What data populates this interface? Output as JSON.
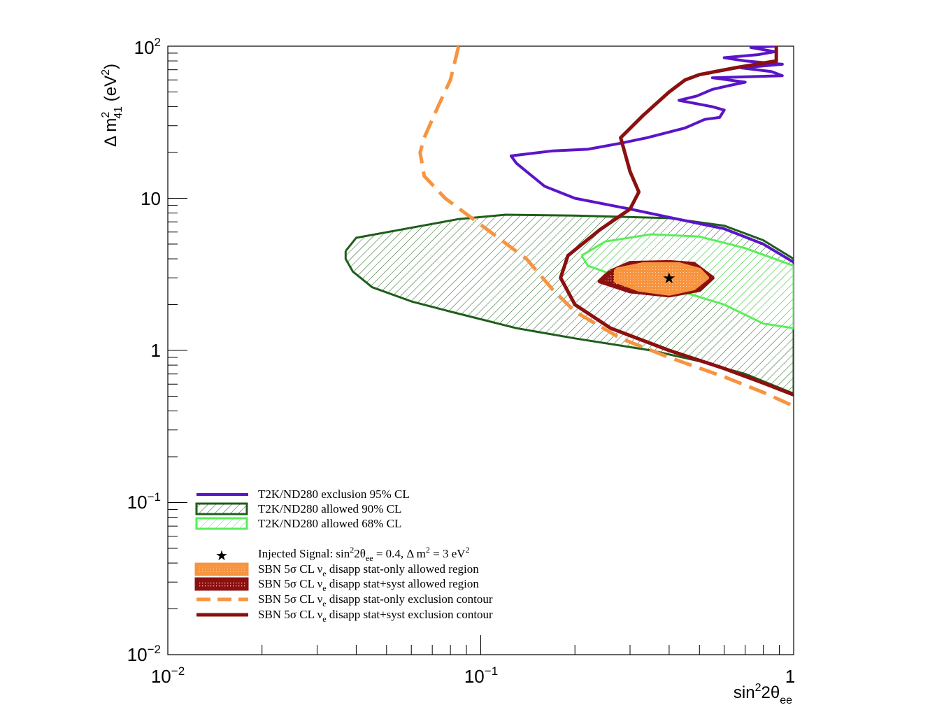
{
  "chart_data": {
    "type": "line",
    "xlabel": "sin²2θ_ee",
    "ylabel": "Δ m²41 (eV²)",
    "x_scale": "log",
    "y_scale": "log",
    "xlim": [
      0.01,
      1
    ],
    "ylim": [
      0.01,
      100
    ],
    "grid": false,
    "legend_position": "bottom-left",
    "x_ticks": [
      {
        "value": 0.01,
        "base": "10",
        "exp": "−2"
      },
      {
        "value": 0.1,
        "base": "10",
        "exp": "−1"
      },
      {
        "value": 1,
        "base": "1",
        "exp": ""
      }
    ],
    "y_ticks": [
      {
        "value": 0.01,
        "base": "10",
        "exp": "−2"
      },
      {
        "value": 0.1,
        "base": "10",
        "exp": "−1"
      },
      {
        "value": 1,
        "base": "1",
        "exp": ""
      },
      {
        "value": 10,
        "base": "10",
        "exp": ""
      },
      {
        "value": 100,
        "base": "10",
        "exp": "2"
      }
    ],
    "injected_signal": {
      "x": 0.4,
      "y": 3.0
    },
    "series": [
      {
        "name": "T2K/ND280 exclusion 95% CL",
        "style": "exclusion-solid",
        "color": "#5b15c8",
        "points": [
          [
            0.87,
            100
          ],
          [
            0.73,
            98
          ],
          [
            0.87,
            92
          ],
          [
            0.77,
            88
          ],
          [
            0.6,
            84
          ],
          [
            0.7,
            80
          ],
          [
            0.92,
            76
          ],
          [
            0.68,
            72
          ],
          [
            0.85,
            68
          ],
          [
            0.92,
            64
          ],
          [
            0.55,
            62
          ],
          [
            0.7,
            58
          ],
          [
            0.62,
            55
          ],
          [
            0.55,
            52
          ],
          [
            0.49,
            47
          ],
          [
            0.43,
            44
          ],
          [
            0.55,
            40
          ],
          [
            0.6,
            38
          ],
          [
            0.58,
            34
          ],
          [
            0.52,
            33
          ],
          [
            0.45,
            29
          ],
          [
            0.34,
            25
          ],
          [
            0.28,
            23
          ],
          [
            0.22,
            21
          ],
          [
            0.17,
            20.5
          ],
          [
            0.125,
            19
          ],
          [
            0.13,
            17
          ],
          [
            0.16,
            12
          ],
          [
            0.2,
            10
          ],
          [
            0.3,
            8.5
          ],
          [
            0.4,
            7.5
          ],
          [
            0.6,
            6.3
          ],
          [
            0.8,
            5.0
          ],
          [
            1.0,
            3.8
          ]
        ]
      },
      {
        "name": "T2K/ND280 allowed 90% CL",
        "style": "allowed-hatched",
        "color": "#1e5e1a",
        "points": [
          [
            0.037,
            4.5
          ],
          [
            0.04,
            5.5
          ],
          [
            0.055,
            6.2
          ],
          [
            0.085,
            7.3
          ],
          [
            0.12,
            7.8
          ],
          [
            0.2,
            7.7
          ],
          [
            0.4,
            7.4
          ],
          [
            0.6,
            6.6
          ],
          [
            0.8,
            5.3
          ],
          [
            1.0,
            4.0
          ],
          [
            1.0,
            0.52
          ],
          [
            0.7,
            0.7
          ],
          [
            0.5,
            0.85
          ],
          [
            0.35,
            1.0
          ],
          [
            0.2,
            1.2
          ],
          [
            0.13,
            1.4
          ],
          [
            0.08,
            1.8
          ],
          [
            0.06,
            2.1
          ],
          [
            0.045,
            2.6
          ],
          [
            0.039,
            3.3
          ],
          [
            0.037,
            4.0
          ],
          [
            0.037,
            4.5
          ]
        ]
      },
      {
        "name": "T2K/ND280 allowed 68% CL",
        "style": "allowed-hatched",
        "color": "#5aee5a",
        "points": [
          [
            0.21,
            4.2
          ],
          [
            0.25,
            5.2
          ],
          [
            0.35,
            5.8
          ],
          [
            0.5,
            5.6
          ],
          [
            0.7,
            4.7
          ],
          [
            1.0,
            3.6
          ],
          [
            1.0,
            1.4
          ],
          [
            0.8,
            1.5
          ],
          [
            0.6,
            2.0
          ],
          [
            0.45,
            2.4
          ],
          [
            0.35,
            2.7
          ],
          [
            0.27,
            3.1
          ],
          [
            0.22,
            3.6
          ],
          [
            0.21,
            4.2
          ]
        ]
      },
      {
        "name": "SBN 5σ CL νe disapp stat-only allowed region",
        "style": "allowed-filled",
        "color": "#f79440",
        "points": [
          [
            0.27,
            3.4
          ],
          [
            0.33,
            3.7
          ],
          [
            0.43,
            3.7
          ],
          [
            0.5,
            3.4
          ],
          [
            0.53,
            3.0
          ],
          [
            0.48,
            2.55
          ],
          [
            0.4,
            2.35
          ],
          [
            0.32,
            2.5
          ],
          [
            0.27,
            2.85
          ],
          [
            0.27,
            3.4
          ]
        ]
      },
      {
        "name": "SBN 5σ CL νe disapp stat+syst allowed region",
        "style": "allowed-filled",
        "color": "#8b1010",
        "points": [
          [
            0.26,
            3.3
          ],
          [
            0.3,
            3.75
          ],
          [
            0.4,
            3.8
          ],
          [
            0.48,
            3.7
          ],
          [
            0.55,
            3.0
          ],
          [
            0.5,
            2.5
          ],
          [
            0.4,
            2.3
          ],
          [
            0.3,
            2.45
          ],
          [
            0.24,
            2.85
          ],
          [
            0.26,
            3.3
          ]
        ]
      },
      {
        "name": "SBN 5σ CL νe disapp stat-only exclusion contour",
        "style": "exclusion-dashed",
        "color": "#f79440",
        "points": [
          [
            0.085,
            100
          ],
          [
            0.08,
            60
          ],
          [
            0.073,
            40
          ],
          [
            0.066,
            25
          ],
          [
            0.064,
            20
          ],
          [
            0.066,
            14
          ],
          [
            0.077,
            10
          ],
          [
            0.1,
            6.7
          ],
          [
            0.14,
            4.0
          ],
          [
            0.17,
            2.5
          ],
          [
            0.2,
            1.8
          ],
          [
            0.28,
            1.2
          ],
          [
            0.4,
            0.9
          ],
          [
            0.6,
            0.67
          ],
          [
            0.8,
            0.53
          ],
          [
            1.0,
            0.43
          ]
        ]
      },
      {
        "name": "SBN 5σ CL νe disapp stat+syst exclusion contour",
        "style": "exclusion-solid",
        "color": "#8b1010",
        "points": [
          [
            0.88,
            100
          ],
          [
            0.88,
            80
          ],
          [
            0.65,
            72
          ],
          [
            0.5,
            65
          ],
          [
            0.45,
            60
          ],
          [
            0.4,
            50
          ],
          [
            0.33,
            35
          ],
          [
            0.28,
            25
          ],
          [
            0.3,
            15
          ],
          [
            0.32,
            11
          ],
          [
            0.3,
            8.5
          ],
          [
            0.24,
            6.2
          ],
          [
            0.19,
            4.2
          ],
          [
            0.18,
            3.0
          ],
          [
            0.2,
            2.0
          ],
          [
            0.26,
            1.4
          ],
          [
            0.4,
            1.0
          ],
          [
            0.6,
            0.76
          ],
          [
            0.8,
            0.61
          ],
          [
            1.0,
            0.51
          ]
        ]
      }
    ],
    "legend": [
      {
        "text": "T2K/ND280 exclusion 95% CL",
        "kind": "line",
        "color": "#5b15c8"
      },
      {
        "text": "T2K/ND280 allowed 90% CL",
        "kind": "hatch-box",
        "color": "#1e5e1a"
      },
      {
        "text": "T2K/ND280 allowed 68% CL",
        "kind": "hatch-box",
        "color": "#5aee5a"
      },
      {
        "text": "Injected Signal: sin²2θ_ee = 0.4, Δ m² = 3 eV²",
        "kind": "star",
        "color": "#000000"
      },
      {
        "text": "SBN 5σ CL νe disapp stat-only allowed region",
        "kind": "fill-box",
        "color": "#f79440"
      },
      {
        "text": "SBN 5σ CL νe disapp stat+syst allowed region",
        "kind": "fill-box",
        "color": "#8b1010"
      },
      {
        "text": "SBN 5σ CL νe disapp stat-only exclusion contour",
        "kind": "dash",
        "color": "#f79440"
      },
      {
        "text": "SBN 5σ CL νe disapp stat+syst exclusion contour",
        "kind": "line",
        "color": "#8b1010"
      }
    ]
  }
}
